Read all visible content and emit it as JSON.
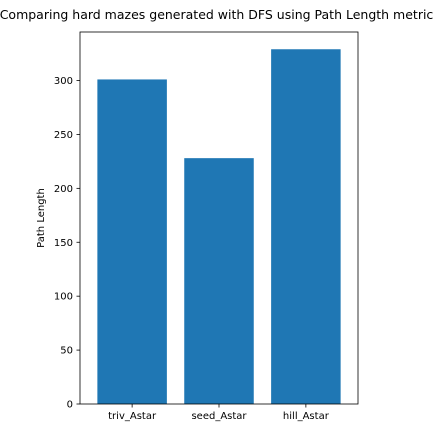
{
  "chart_data": {
    "type": "bar",
    "title": "Comparing hard mazes generated with DFS using Path Length metric",
    "xlabel": "",
    "ylabel": "Path Length",
    "categories": [
      "triv_Astar",
      "seed_Astar",
      "hill_Astar"
    ],
    "values": [
      301,
      228,
      329
    ],
    "ylim": [
      0,
      345
    ],
    "yticks": [
      0,
      50,
      100,
      150,
      200,
      250,
      300
    ],
    "bar_color": "#1f77b4",
    "grid": false,
    "legend": "none"
  }
}
